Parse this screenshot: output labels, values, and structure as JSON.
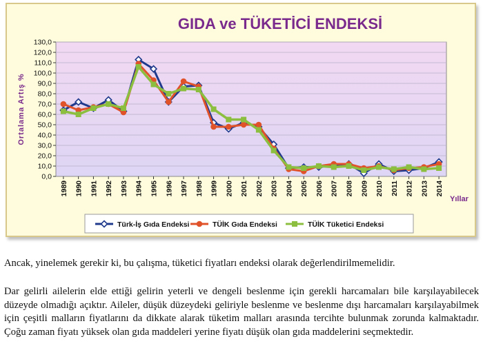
{
  "chart_data": {
    "type": "line",
    "title": "GIDA ve TÜKETİCİ ENDEKSİ",
    "ylabel": "Ortalama Artış %",
    "xlabel": "Yıllar",
    "ylim": [
      0,
      130
    ],
    "yticks": [
      "0,0",
      "10,0",
      "20,0",
      "30,0",
      "40,0",
      "50,0",
      "60,0",
      "70,0",
      "80,0",
      "90,0",
      "100,0",
      "110,0",
      "120,0",
      "130,0"
    ],
    "categories": [
      "1989",
      "1990",
      "1991",
      "1992",
      "1993",
      "1994",
      "1995",
      "1996",
      "1997",
      "1998",
      "1999",
      "2000",
      "2001",
      "2002",
      "2003",
      "2004",
      "2005",
      "2006",
      "2007",
      "2008",
      "2009",
      "2010",
      "2011",
      "2012",
      "2013",
      "2014"
    ],
    "grid": true,
    "legend_position": "bottom",
    "series": [
      {
        "name": "Türk-İş Gıda Endeksi",
        "color": "#1f3a8c",
        "marker": "diamond",
        "values": [
          64,
          72,
          66,
          74,
          63,
          113,
          104,
          72,
          87,
          88,
          52,
          46,
          52,
          48,
          31,
          8,
          9,
          9,
          11,
          12,
          3,
          12,
          5,
          6,
          8,
          14
        ]
      },
      {
        "name": "TÜİK Gıda Endeksi",
        "color": "#e0522a",
        "marker": "circle",
        "values": [
          70,
          64,
          67,
          70,
          62,
          109,
          93,
          72,
          92,
          87,
          48,
          48,
          50,
          50,
          27,
          7,
          5,
          10,
          12,
          12,
          8,
          10,
          6,
          8,
          9,
          12
        ]
      },
      {
        "name": "TÜİK Tüketici Endeksi",
        "color": "#8cbf3f",
        "marker": "square",
        "values": [
          63,
          60,
          66,
          70,
          66,
          106,
          89,
          80,
          85,
          84,
          65,
          55,
          55,
          45,
          25,
          9,
          8,
          10,
          9,
          10,
          6,
          9,
          7,
          9,
          7,
          8
        ]
      }
    ]
  },
  "text": {
    "para1": "Ancak, yinelemek gerekir ki, bu çalışma, tüketici fiyatları endeksi olarak değerlendirilmemelidir.",
    "para2": "Dar gelirli ailelerin elde ettiği gelirin yeterli ve dengeli beslenme için gerekli harcamaları bile karşılayabilecek düzeyde olmadığı açıktır. Aileler, düşük düzeydeki geliriyle beslenme ve beslenme dışı harcamaları karşılayabilmek için çeşitli malların fiyatlarını da dikkate alarak tüketim malları arasında tercihte bulunmak zorunda kalmaktadır. Çoğu zaman fiyatı yüksek olan gıda maddeleri yerine fiyatı düşük olan gıda maddelerini seçmektedir."
  }
}
